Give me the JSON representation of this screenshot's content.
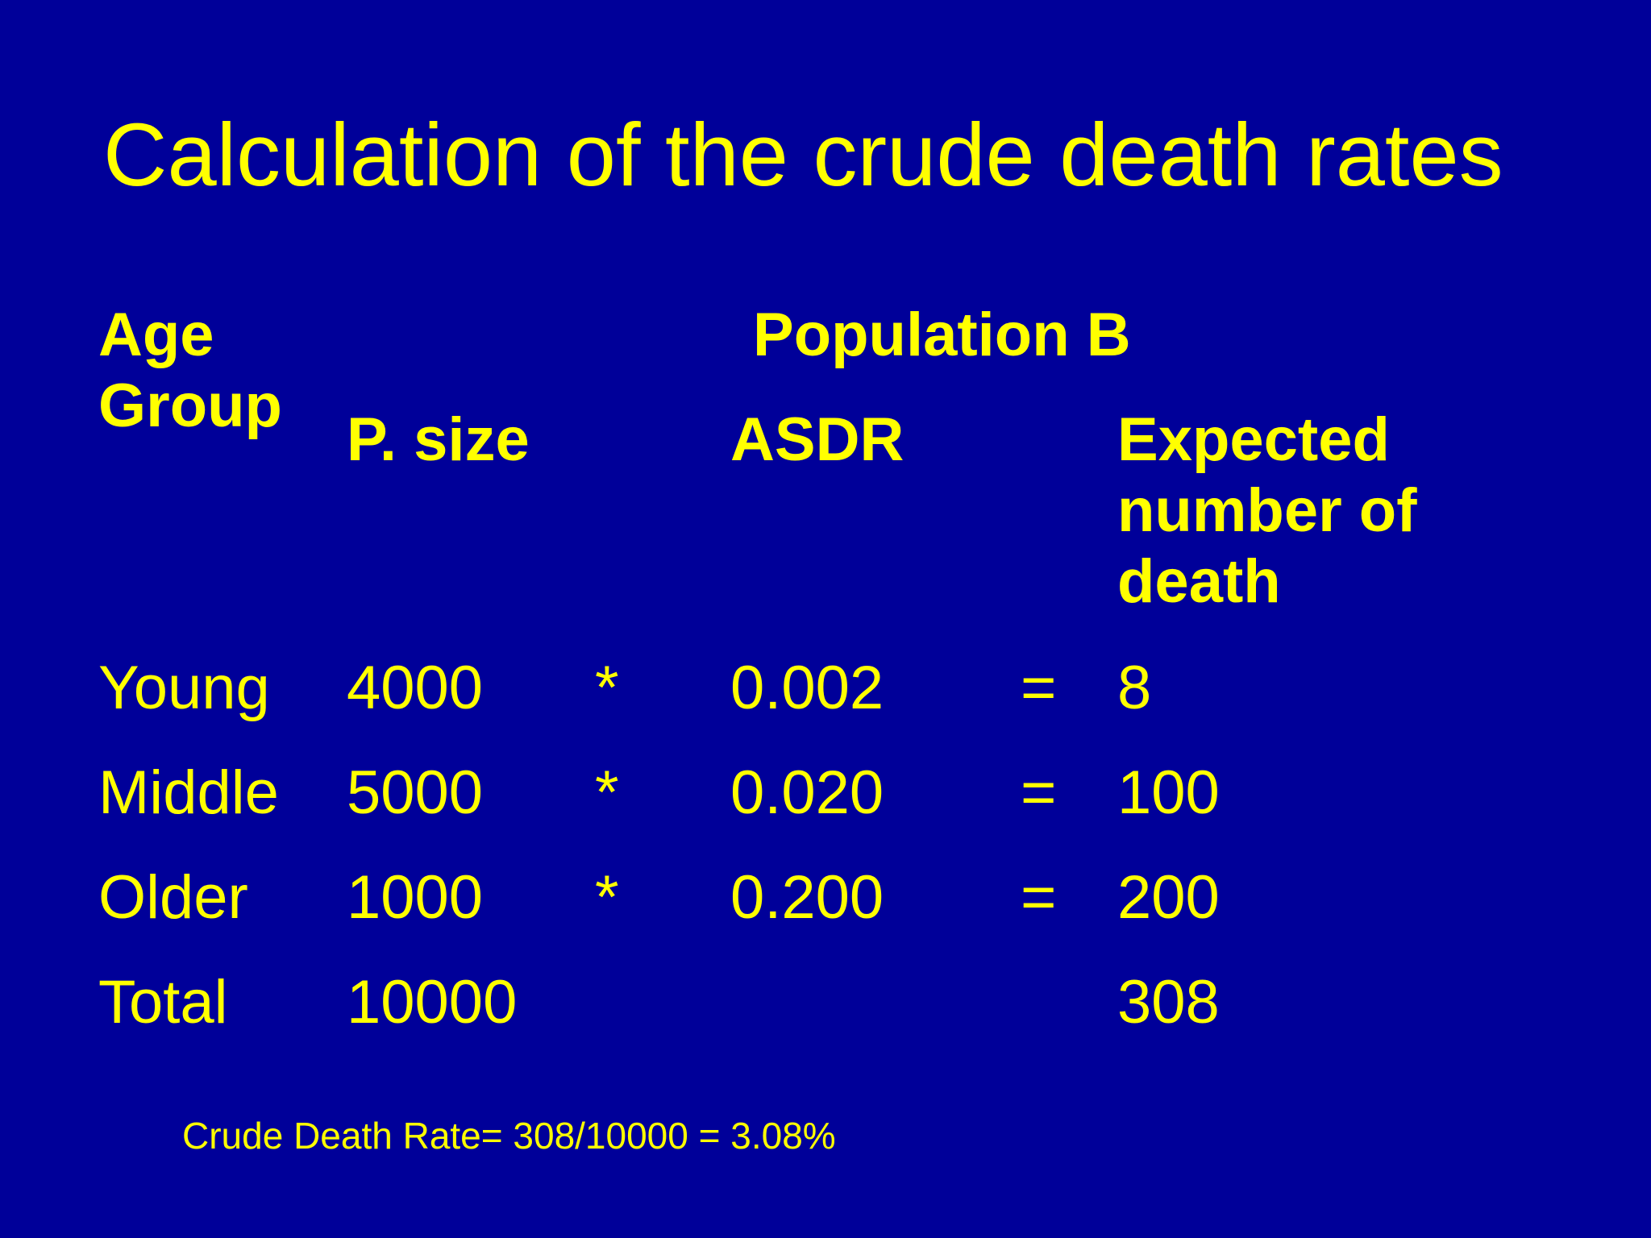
{
  "slide": {
    "title": "Calculation of the crude death rates",
    "background_color": "#000099",
    "text_color": "#ffff00"
  },
  "table": {
    "group_header": "Population B",
    "headers": {
      "age_group_line1": "Age",
      "age_group_line2": "Group",
      "p_size": "P. size",
      "asdr": "ASDR",
      "expected_line1": "Expected",
      "expected_line2": "number of",
      "expected_line3": "death"
    },
    "rows": [
      {
        "group": "Young",
        "size": "4000",
        "mult": "*",
        "asdr": "0.002",
        "eq": "=",
        "expected": "8"
      },
      {
        "group": "Middle",
        "size": "5000",
        "mult": "*",
        "asdr": "0.020",
        "eq": "=",
        "expected": "100"
      },
      {
        "group": "Older",
        "size": "1000",
        "mult": "*",
        "asdr": "0.200",
        "eq": "=",
        "expected": "200"
      },
      {
        "group": "Total",
        "size": "10000",
        "mult": "",
        "asdr": "",
        "eq": "",
        "expected": "308"
      }
    ]
  },
  "footnote": "Crude Death Rate= 308/10000 = 3.08%"
}
